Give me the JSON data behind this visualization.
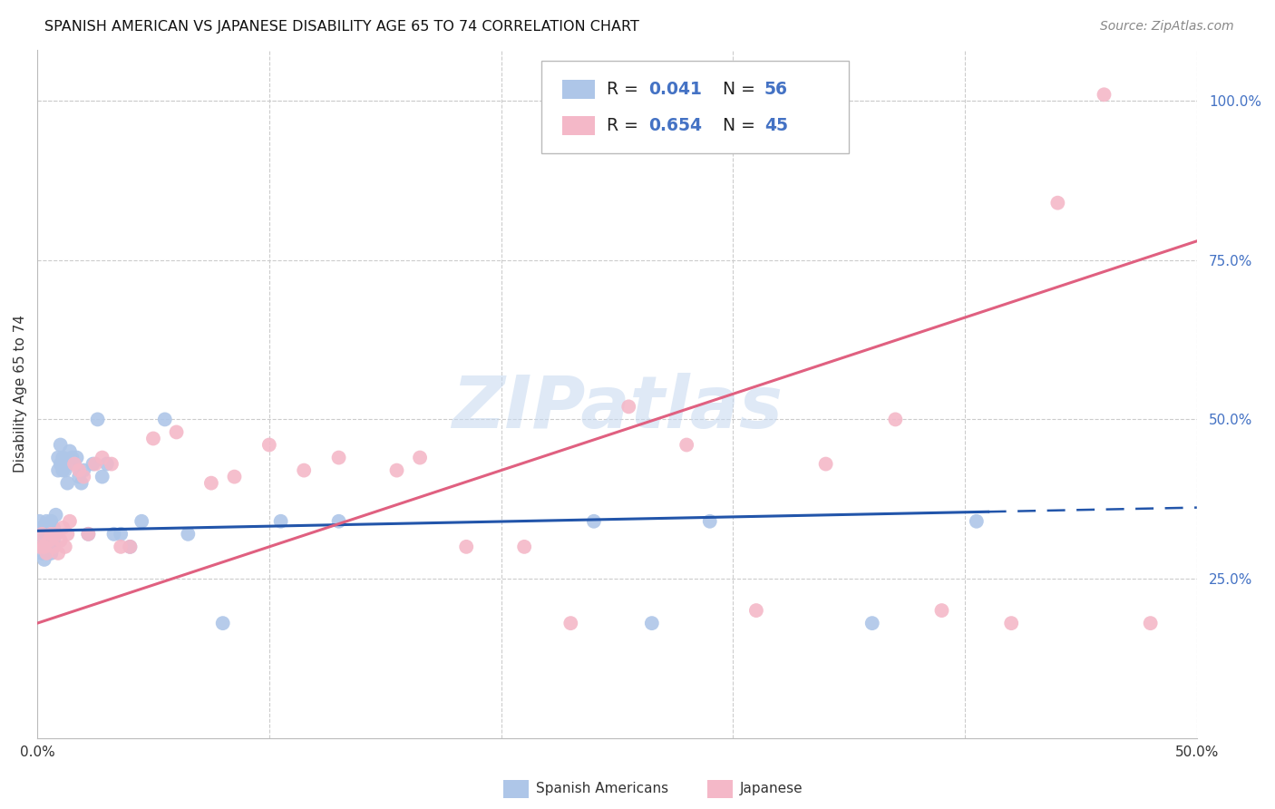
{
  "title": "SPANISH AMERICAN VS JAPANESE DISABILITY AGE 65 TO 74 CORRELATION CHART",
  "source": "Source: ZipAtlas.com",
  "ylabel": "Disability Age 65 to 74",
  "xlim": [
    0.0,
    0.5
  ],
  "ylim": [
    0.0,
    1.08
  ],
  "r_spanish": 0.041,
  "n_spanish": 56,
  "r_japanese": 0.654,
  "n_japanese": 45,
  "watermark": "ZIPatlas",
  "legend_color": "#4472c4",
  "spanish_color": "#aec6e8",
  "japanese_color": "#f4b8c8",
  "spanish_line_color": "#2255aa",
  "japanese_line_color": "#e06080",
  "background_color": "#ffffff",
  "grid_color": "#cccccc",
  "spanish_x": [
    0.001,
    0.001,
    0.002,
    0.002,
    0.002,
    0.003,
    0.003,
    0.003,
    0.004,
    0.004,
    0.004,
    0.005,
    0.005,
    0.005,
    0.006,
    0.006,
    0.006,
    0.007,
    0.007,
    0.007,
    0.008,
    0.008,
    0.009,
    0.009,
    0.01,
    0.01,
    0.011,
    0.011,
    0.012,
    0.013,
    0.014,
    0.015,
    0.016,
    0.017,
    0.018,
    0.019,
    0.02,
    0.022,
    0.024,
    0.026,
    0.028,
    0.03,
    0.033,
    0.036,
    0.04,
    0.045,
    0.055,
    0.065,
    0.08,
    0.105,
    0.13,
    0.24,
    0.265,
    0.29,
    0.36,
    0.405
  ],
  "spanish_y": [
    0.32,
    0.34,
    0.29,
    0.31,
    0.33,
    0.3,
    0.32,
    0.28,
    0.31,
    0.3,
    0.34,
    0.31,
    0.33,
    0.3,
    0.32,
    0.34,
    0.29,
    0.31,
    0.33,
    0.3,
    0.35,
    0.32,
    0.44,
    0.42,
    0.46,
    0.43,
    0.42,
    0.44,
    0.42,
    0.4,
    0.45,
    0.44,
    0.43,
    0.44,
    0.41,
    0.4,
    0.42,
    0.32,
    0.43,
    0.5,
    0.41,
    0.43,
    0.32,
    0.32,
    0.3,
    0.34,
    0.5,
    0.32,
    0.18,
    0.34,
    0.34,
    0.34,
    0.18,
    0.34,
    0.18,
    0.34
  ],
  "japanese_x": [
    0.001,
    0.002,
    0.003,
    0.004,
    0.005,
    0.006,
    0.007,
    0.008,
    0.009,
    0.01,
    0.011,
    0.012,
    0.013,
    0.014,
    0.016,
    0.018,
    0.02,
    0.022,
    0.025,
    0.028,
    0.032,
    0.036,
    0.04,
    0.05,
    0.06,
    0.075,
    0.085,
    0.1,
    0.115,
    0.13,
    0.155,
    0.165,
    0.185,
    0.21,
    0.23,
    0.255,
    0.28,
    0.31,
    0.34,
    0.37,
    0.39,
    0.42,
    0.44,
    0.46,
    0.48
  ],
  "japanese_y": [
    0.3,
    0.32,
    0.3,
    0.29,
    0.31,
    0.32,
    0.3,
    0.32,
    0.29,
    0.31,
    0.33,
    0.3,
    0.32,
    0.34,
    0.43,
    0.42,
    0.41,
    0.32,
    0.43,
    0.44,
    0.43,
    0.3,
    0.3,
    0.47,
    0.48,
    0.4,
    0.41,
    0.46,
    0.42,
    0.44,
    0.42,
    0.44,
    0.3,
    0.3,
    0.18,
    0.52,
    0.46,
    0.2,
    0.43,
    0.5,
    0.2,
    0.18,
    0.84,
    1.01,
    0.18
  ]
}
